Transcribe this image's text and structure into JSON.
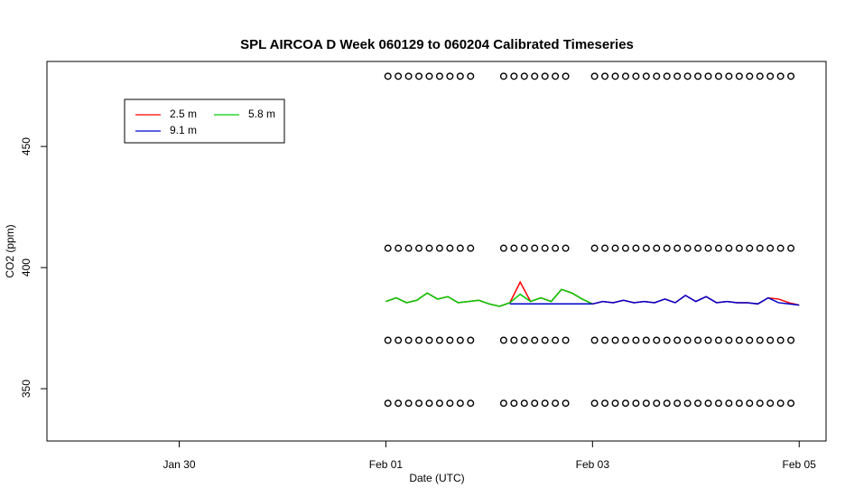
{
  "chart_data": {
    "type": "line",
    "title": "SPL AIRCOA D  Week 060129 to 060204  Calibrated Timeseries",
    "x_label": "Date (UTC)",
    "y_label": "CO2 (ppm)",
    "xlim": [
      28.72,
      36.26
    ],
    "ylim": [
      328.4,
      485.1
    ],
    "xticks": [
      {
        "value": 30,
        "label": "Jan 30"
      },
      {
        "value": 32,
        "label": "Feb 01"
      },
      {
        "value": 34,
        "label": "Feb 03"
      },
      {
        "value": 36,
        "label": "Feb 05"
      }
    ],
    "yticks": [
      350,
      400,
      450
    ],
    "legend": "topleft",
    "series": [
      {
        "name": "2.5 m",
        "color": "#ff0000",
        "x": [
          32.0,
          32.1,
          32.2,
          32.3,
          32.4,
          32.5,
          32.6,
          32.7,
          32.8,
          32.9,
          33.0,
          33.1,
          33.2,
          33.3,
          33.4,
          33.5,
          33.6,
          33.7,
          33.8,
          33.9,
          34.0,
          34.1,
          34.2,
          34.3,
          34.4,
          34.5,
          34.6,
          34.7,
          34.8,
          34.9,
          35.0,
          35.1,
          35.2,
          35.3,
          35.4,
          35.5,
          35.6,
          35.7,
          35.8,
          35.9,
          36.0
        ],
        "values": [
          386,
          387.5,
          385.5,
          386.5,
          389.5,
          387,
          388,
          385.5,
          386,
          386.5,
          385,
          384,
          385.5,
          394,
          386,
          387.5,
          386,
          391,
          389.5,
          387,
          385,
          386,
          385.5,
          386.5,
          385.5,
          386,
          385.5,
          387,
          385.5,
          388.5,
          386,
          388,
          385.5,
          386,
          385.5,
          385.5,
          385,
          387.5,
          387,
          385.5,
          384.5
        ]
      },
      {
        "name": "5.8 m",
        "color": "#00cc00",
        "x": [
          32.0,
          32.1,
          32.2,
          32.3,
          32.4,
          32.5,
          32.6,
          32.7,
          32.8,
          32.9,
          33.0,
          33.1,
          33.2,
          33.3,
          33.4,
          33.5,
          33.6,
          33.7,
          33.8,
          33.9,
          34.0
        ],
        "values": [
          386,
          387.5,
          385.5,
          386.5,
          389.5,
          387,
          388,
          385.5,
          386,
          386.5,
          385,
          384,
          385.5,
          389,
          386,
          387.5,
          386,
          391,
          389.5,
          387,
          385
        ]
      },
      {
        "name": "9.1 m",
        "color": "#0000cc",
        "x": [
          33.2,
          33.3,
          33.4,
          33.5,
          33.6,
          33.7,
          33.8,
          33.9,
          34.0,
          34.1,
          34.2,
          34.3,
          34.4,
          34.5,
          34.6,
          34.7,
          34.8,
          34.9,
          35.0,
          35.1,
          35.2,
          35.3,
          35.4,
          35.5,
          35.6,
          35.7,
          35.8,
          35.9,
          36.0
        ],
        "values": [
          385,
          385,
          385,
          385,
          385,
          385,
          385,
          385,
          385,
          386,
          385.5,
          386.5,
          385.5,
          386,
          385.5,
          387,
          385.5,
          388.5,
          386,
          388,
          385.5,
          386,
          385.5,
          385.5,
          385,
          387.5,
          385.5,
          385,
          384.5
        ]
      },
      {
        "type": "scatter",
        "color": "#000000",
        "x": [
          32.02,
          32.12,
          32.22,
          32.32,
          32.42,
          32.52,
          32.62,
          32.72,
          32.82,
          33.14,
          33.24,
          33.34,
          33.44,
          33.54,
          33.64,
          33.74,
          34.02,
          34.12,
          34.22,
          34.32,
          34.42,
          34.52,
          34.62,
          34.72,
          34.82,
          34.92,
          35.02,
          35.12,
          35.22,
          35.32,
          35.42,
          35.52,
          35.62,
          35.72,
          35.82,
          35.92
        ],
        "values": [
          479,
          479,
          479,
          479,
          479,
          479,
          479,
          479,
          479,
          479,
          479,
          479,
          479,
          479,
          479,
          479,
          479,
          479,
          479,
          479,
          479,
          479,
          479,
          479,
          479,
          479,
          479,
          479,
          479,
          479,
          479,
          479,
          479,
          479,
          479,
          479
        ]
      },
      {
        "type": "scatter",
        "color": "#000000",
        "x": [
          32.02,
          32.12,
          32.22,
          32.32,
          32.42,
          32.52,
          32.62,
          32.72,
          32.82,
          33.14,
          33.24,
          33.34,
          33.44,
          33.54,
          33.64,
          33.74,
          34.02,
          34.12,
          34.22,
          34.32,
          34.42,
          34.52,
          34.62,
          34.72,
          34.82,
          34.92,
          35.02,
          35.12,
          35.22,
          35.32,
          35.42,
          35.52,
          35.62,
          35.72,
          35.82,
          35.92
        ],
        "values": [
          408,
          408,
          408,
          408,
          408,
          408,
          408,
          408,
          408,
          408,
          408,
          408,
          408,
          408,
          408,
          408,
          408,
          408,
          408,
          408,
          408,
          408,
          408,
          408,
          408,
          408,
          408,
          408,
          408,
          408,
          408,
          408,
          408,
          408,
          408,
          408
        ]
      },
      {
        "type": "scatter",
        "color": "#000000",
        "x": [
          32.02,
          32.12,
          32.22,
          32.32,
          32.42,
          32.52,
          32.62,
          32.72,
          32.82,
          33.14,
          33.24,
          33.34,
          33.44,
          33.54,
          33.64,
          33.74,
          34.02,
          34.12,
          34.22,
          34.32,
          34.42,
          34.52,
          34.62,
          34.72,
          34.82,
          34.92,
          35.02,
          35.12,
          35.22,
          35.32,
          35.42,
          35.52,
          35.62,
          35.72,
          35.82,
          35.92
        ],
        "values": [
          370,
          370,
          370,
          370,
          370,
          370,
          370,
          370,
          370,
          370,
          370,
          370,
          370,
          370,
          370,
          370,
          370,
          370,
          370,
          370,
          370,
          370,
          370,
          370,
          370,
          370,
          370,
          370,
          370,
          370,
          370,
          370,
          370,
          370,
          370,
          370
        ]
      },
      {
        "type": "scatter",
        "color": "#000000",
        "x": [
          32.02,
          32.12,
          32.22,
          32.32,
          32.42,
          32.52,
          32.62,
          32.72,
          32.82,
          33.14,
          33.24,
          33.34,
          33.44,
          33.54,
          33.64,
          33.74,
          34.02,
          34.12,
          34.22,
          34.32,
          34.42,
          34.52,
          34.62,
          34.72,
          34.82,
          34.92,
          35.02,
          35.12,
          35.22,
          35.32,
          35.42,
          35.52,
          35.62,
          35.72,
          35.82,
          35.92
        ],
        "values": [
          344,
          344,
          344,
          344,
          344,
          344,
          344,
          344,
          344,
          344,
          344,
          344,
          344,
          344,
          344,
          344,
          344,
          344,
          344,
          344,
          344,
          344,
          344,
          344,
          344,
          344,
          344,
          344,
          344,
          344,
          344,
          344,
          344,
          344,
          344,
          344
        ]
      }
    ]
  }
}
